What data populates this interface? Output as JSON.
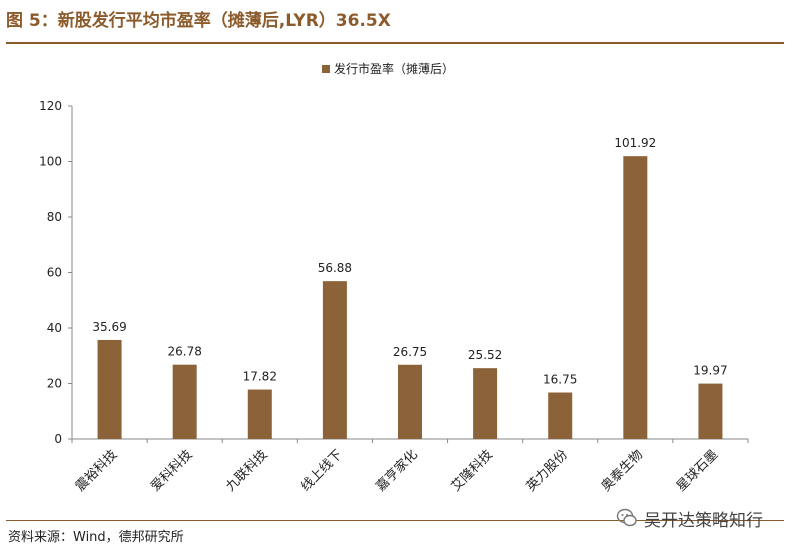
{
  "figure": {
    "title": "图 5：新股发行平均市盈率（摊薄后,LYR）36.5X",
    "source": "资料来源：Wind，德邦研究所",
    "watermark": "吴开达策略知行"
  },
  "colors": {
    "bar": "#8c6239",
    "accent": "#8c5b2c"
  },
  "chart_data": {
    "type": "bar",
    "categories": [
      "震裕科技",
      "爱科科技",
      "九联科技",
      "线上线下",
      "嘉亨家化",
      "艾隆科技",
      "英力股份",
      "奥泰生物",
      "星球石墨"
    ],
    "series": [
      {
        "name": "发行市盈率（摊薄后）",
        "values": [
          35.69,
          26.78,
          17.82,
          56.88,
          26.75,
          25.52,
          16.75,
          101.92,
          19.97
        ]
      }
    ],
    "value_labels": [
      "35.69",
      "26.78",
      "17.82",
      "56.88",
      "26.75",
      "25.52",
      "16.75",
      "101.92",
      "19.97"
    ],
    "ylim": [
      0,
      120
    ],
    "yticks": [
      0,
      20,
      40,
      60,
      80,
      100,
      120
    ],
    "legend_position": "top-center",
    "grid": false
  }
}
